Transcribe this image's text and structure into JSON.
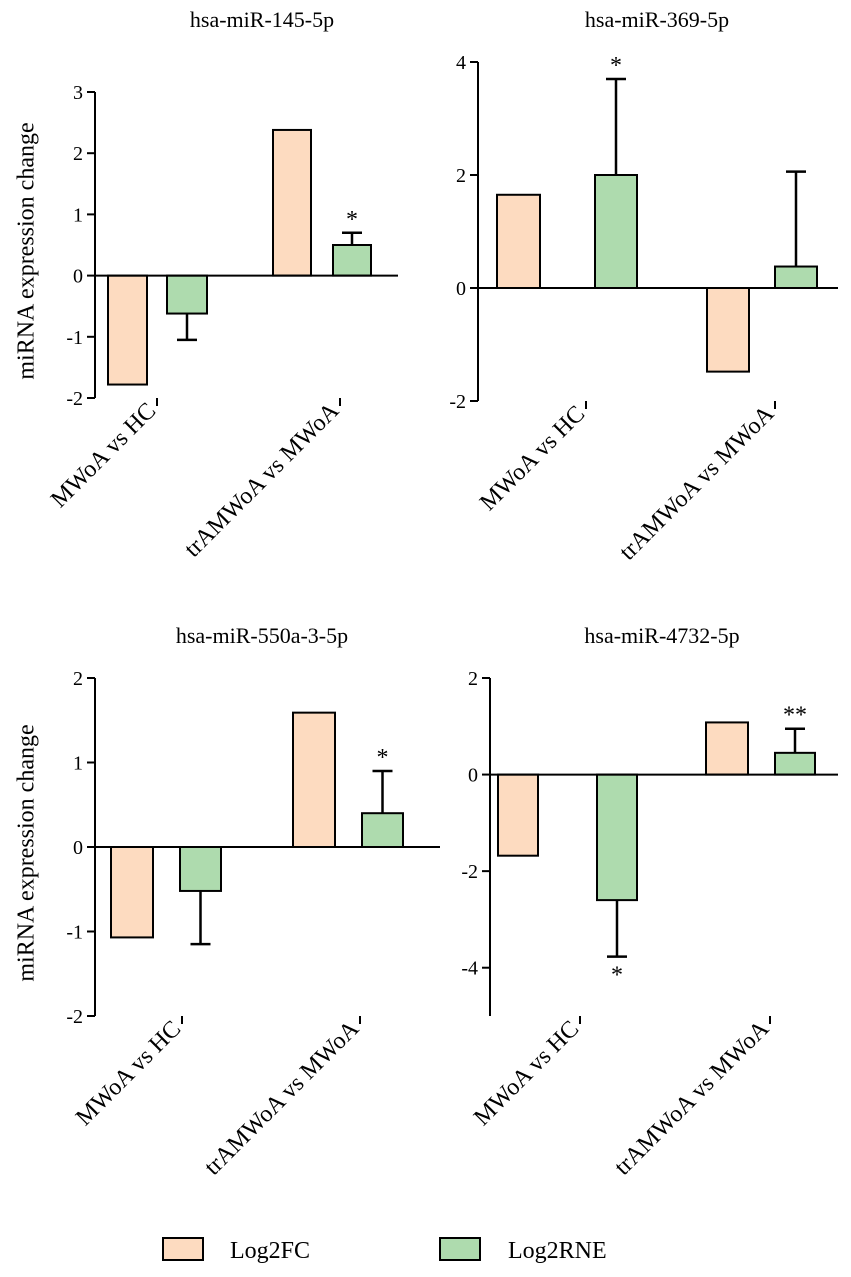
{
  "y_axis_label": "miRNA expression change",
  "legend": [
    {
      "label": "Log2FC",
      "color": "#FDDBC0"
    },
    {
      "label": "Log2RNE",
      "color": "#AEDBAE"
    }
  ],
  "chart_data": [
    {
      "type": "bar",
      "title": "hsa-miR-145-5p",
      "categories": [
        "MWoA vs HC",
        "trAMWoA vs MWoA"
      ],
      "ylim": [
        -2,
        3
      ],
      "yticks": [
        -2,
        -1,
        0,
        1,
        2,
        3
      ],
      "ylabel": "miRNA expression change",
      "series": [
        {
          "name": "Log2FC",
          "values": [
            -1.78,
            2.38
          ],
          "errors": [
            null,
            null
          ],
          "sig": [
            "",
            ""
          ]
        },
        {
          "name": "Log2RNE",
          "values": [
            -0.62,
            0.5
          ],
          "errors": [
            0.43,
            0.2
          ],
          "sig": [
            "",
            "*"
          ]
        }
      ]
    },
    {
      "type": "bar",
      "title": "hsa-miR-369-5p",
      "categories": [
        "MWoA vs HC",
        "trAMWoA vs MWoA"
      ],
      "ylim": [
        -2,
        4
      ],
      "yticks": [
        -2,
        0,
        2,
        4
      ],
      "ylabel": "",
      "series": [
        {
          "name": "Log2FC",
          "values": [
            1.65,
            -1.48
          ],
          "errors": [
            null,
            null
          ],
          "sig": [
            "",
            ""
          ]
        },
        {
          "name": "Log2RNE",
          "values": [
            2.0,
            0.38
          ],
          "errors": [
            1.7,
            1.68
          ],
          "sig": [
            "*",
            ""
          ]
        }
      ]
    },
    {
      "type": "bar",
      "title": "hsa-miR-550a-3-5p",
      "categories": [
        "MWoA vs HC",
        "trAMWoA vs MWoA"
      ],
      "ylim": [
        -2,
        2
      ],
      "yticks": [
        -2,
        -1,
        0,
        1,
        2
      ],
      "ylabel": "miRNA expression change",
      "series": [
        {
          "name": "Log2FC",
          "values": [
            -1.07,
            1.59
          ],
          "errors": [
            null,
            null
          ],
          "sig": [
            "",
            ""
          ]
        },
        {
          "name": "Log2RNE",
          "values": [
            -0.52,
            0.4
          ],
          "errors": [
            0.63,
            0.5
          ],
          "sig": [
            "",
            "*"
          ]
        }
      ]
    },
    {
      "type": "bar",
      "title": "hsa-miR-4732-5p",
      "categories": [
        "MWoA vs HC",
        "trAMWoA vs MWoA"
      ],
      "ylim": [
        -5,
        2
      ],
      "yticks": [
        -4,
        -2,
        0,
        2
      ],
      "ylabel": "",
      "series": [
        {
          "name": "Log2FC",
          "values": [
            -1.68,
            1.08
          ],
          "errors": [
            null,
            null
          ],
          "sig": [
            "",
            ""
          ]
        },
        {
          "name": "Log2RNE",
          "values": [
            -2.6,
            0.45
          ],
          "errors": [
            1.17,
            0.5
          ],
          "sig": [
            "*",
            "**"
          ]
        }
      ]
    }
  ]
}
